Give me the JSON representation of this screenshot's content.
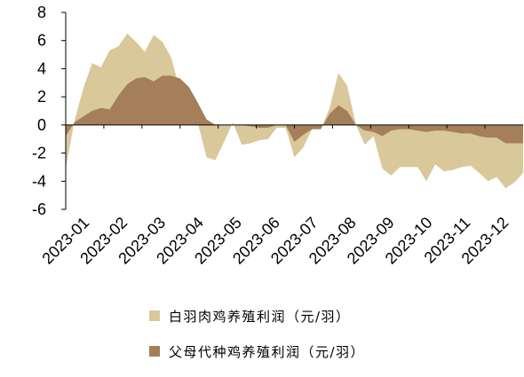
{
  "chart_data": {
    "type": "area",
    "y_ticks": [
      "8",
      "6",
      "4",
      "2",
      "0",
      "-2",
      "-4",
      "-6"
    ],
    "x_labels": [
      "2023-01",
      "2023-02",
      "2023-03",
      "2023-04",
      "2023-05",
      "2023-06",
      "2023-07",
      "2023-08",
      "2023-09",
      "2023-10",
      "2023-11",
      "2023-12"
    ],
    "ylim": [
      -6,
      8
    ],
    "grid": false,
    "legend_position": "bottom",
    "series": [
      {
        "name": "白羽肉鸡养殖利润（元/羽）",
        "color": "#d8c89a",
        "values": [
          -3.1,
          0.3,
          2.6,
          4.4,
          4.1,
          5.3,
          5.6,
          6.5,
          5.9,
          5.2,
          6.4,
          5.9,
          4.8,
          2.4,
          1.3,
          0.2,
          -2.3,
          -2.5,
          -1.2,
          0.2,
          -1.4,
          -1.3,
          -1.1,
          -1.0,
          -0.2,
          -0.2,
          -2.3,
          -1.6,
          -0.3,
          -0.3,
          1.2,
          3.7,
          2.8,
          0.0,
          -1.4,
          -0.8,
          -3.1,
          -3.6,
          -3.0,
          -3.0,
          -3.0,
          -4.0,
          -2.8,
          -3.3,
          -3.2,
          -3.0,
          -2.9,
          -3.4,
          -4.0,
          -3.7,
          -4.5,
          -4.1,
          -3.4
        ]
      },
      {
        "name": "父母代种鸡养殖利润（元/羽）",
        "color": "#a47f5a",
        "values": [
          -0.8,
          0.2,
          0.6,
          1.0,
          1.2,
          1.1,
          2.1,
          2.9,
          3.3,
          3.4,
          3.1,
          3.5,
          3.5,
          3.3,
          2.7,
          1.6,
          0.4,
          0.0,
          0.0,
          0.0,
          0.0,
          -0.1,
          -0.2,
          -0.2,
          0.0,
          0.0,
          -1.2,
          -0.7,
          -0.3,
          -0.3,
          0.8,
          1.4,
          1.0,
          0.0,
          -0.4,
          -0.5,
          -0.8,
          -0.4,
          -0.3,
          -0.3,
          -0.4,
          -0.5,
          -0.4,
          -0.4,
          -0.5,
          -0.6,
          -0.6,
          -0.8,
          -0.9,
          -0.9,
          -1.3,
          -1.3,
          -1.3
        ]
      }
    ]
  }
}
